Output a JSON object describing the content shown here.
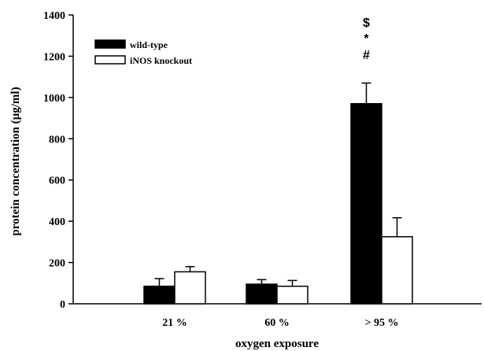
{
  "chart_data": {
    "type": "bar",
    "title": "",
    "xlabel": "oxygen exposure",
    "ylabel": "protein concentration (µg/ml)",
    "ylim": [
      0,
      1400
    ],
    "yticks": [
      "0",
      "200",
      "400",
      "600",
      "800",
      "1000",
      "1200",
      "1400"
    ],
    "categories": [
      "21 %",
      "60 %",
      "> 95 %"
    ],
    "series": [
      {
        "name": "wild-type",
        "color": "#000000",
        "values": [
          85,
          95,
          970
        ],
        "errors": [
          37,
          22,
          100
        ]
      },
      {
        "name": "iNOS knockout",
        "color": "#ffffff",
        "values": [
          155,
          85,
          325
        ],
        "errors": [
          25,
          28,
          92
        ]
      }
    ],
    "grid": false,
    "legend_position": "top-left",
    "significance_markers": {
      "category": "> 95 %",
      "series": "wild-type",
      "symbols": [
        "$",
        "*",
        "#"
      ]
    }
  }
}
